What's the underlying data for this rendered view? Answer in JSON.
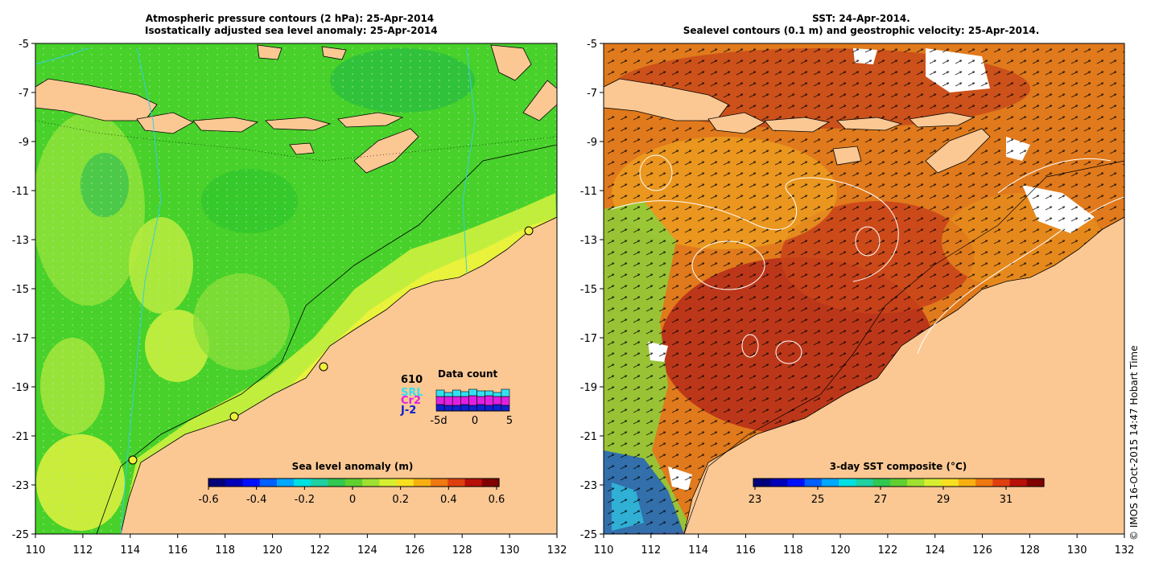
{
  "left_panel": {
    "title_line1": "Atmospheric pressure contours (2 hPa): 25-Apr-2014",
    "title_line2": "Isostatically adjusted sea level anomaly: 25-Apr-2014",
    "colorbar_title": "Sea level anomaly (m)",
    "colorbar_ticks": [
      "-0.6",
      "-0.4",
      "-0.2",
      "0",
      "0.2",
      "0.4",
      "0.6"
    ],
    "legend": {
      "count_label": "610",
      "missions": [
        "SRL",
        "Cr2",
        "J-2"
      ],
      "mission_colors": [
        "#33e0f0",
        "#e020e0",
        "#1020d0"
      ],
      "chart_title": "Data count",
      "chart_ticks": [
        "-5d",
        "0",
        "5"
      ]
    }
  },
  "right_panel": {
    "title_line1": "SST: 24-Apr-2014.",
    "title_line2": "Sealevel contours (0.1 m) and geostrophic velocity: 25-Apr-2014.",
    "colorbar_title": "3-day SST composite (°C)",
    "colorbar_ticks": [
      "23",
      "25",
      "27",
      "29",
      "31"
    ]
  },
  "axes": {
    "x_ticks": [
      "110",
      "112",
      "114",
      "116",
      "118",
      "120",
      "122",
      "124",
      "126",
      "128",
      "130",
      "132"
    ],
    "y_ticks": [
      "-5",
      "-7",
      "-9",
      "-11",
      "-13",
      "-15",
      "-17",
      "-19",
      "-21",
      "-23",
      "-25"
    ]
  },
  "footer_credit": "© IMOS 16-Oct-2015 14:47 Hobart Time",
  "colors": {
    "land": "#fbc894",
    "sla_ocean": "#4cd428",
    "sst_ocean": "#d2561a"
  }
}
